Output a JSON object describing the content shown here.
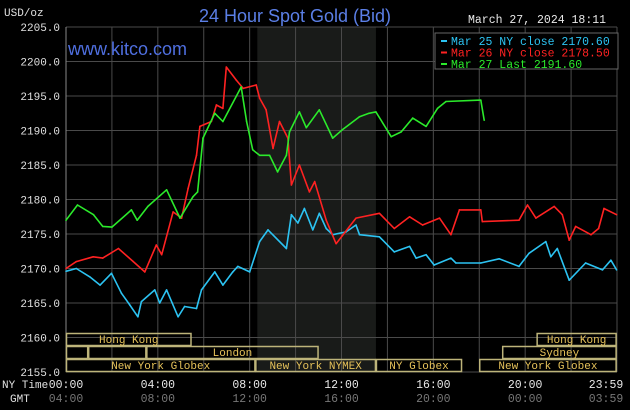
{
  "chart_data": {
    "type": "line",
    "title": "24 Hour Spot Gold (Bid)",
    "timestamp": "March 27, 2024 18:11",
    "watermark": "www.kitco.com",
    "ylabel": "USD/oz",
    "ylim": [
      2155,
      2205
    ],
    "yticks": [
      "2205.0",
      "2200.0",
      "2195.0",
      "2190.0",
      "2185.0",
      "2180.0",
      "2175.0",
      "2170.0",
      "2165.0",
      "2160.0",
      "2155.0"
    ],
    "xlim": [
      "00:00",
      "23:59"
    ],
    "xaxis_label_ny": "NY Time",
    "xaxis_label_gmt": "GMT",
    "xticks_ny": [
      "00:00",
      "04:00",
      "08:00",
      "12:00",
      "16:00",
      "20:00",
      "23:59"
    ],
    "xticks_gmt": [
      "04:00",
      "08:00",
      "12:00",
      "16:00",
      "20:00",
      "00:00",
      "03:59"
    ],
    "grid": true,
    "legend_position": "top-right",
    "shaded_window": [
      "08:20",
      "13:30"
    ],
    "colors": {
      "background": "#000000",
      "grid": "#4a4a4a",
      "title": "#5b7fe6",
      "session_text": "#e6c25a",
      "session_border": "#bdb47a",
      "shade": "#191b19",
      "gmt_text": "#777777"
    },
    "series": [
      {
        "name": "Mar 25 NY close 2170.60",
        "color": "#2cc3f2",
        "x": [
          "00:00",
          "00:27",
          "01:02",
          "01:29",
          "01:59",
          "02:25",
          "02:47",
          "03:08",
          "03:17",
          "03:52",
          "04:05",
          "04:23",
          "04:53",
          "05:10",
          "05:41",
          "05:54",
          "06:29",
          "06:50",
          "07:16",
          "07:29",
          "08:00",
          "08:26",
          "08:48",
          "09:36",
          "09:49",
          "10:06",
          "10:23",
          "10:45",
          "11:02",
          "11:20",
          "11:37",
          "12:12",
          "12:38",
          "12:47",
          "13:39",
          "14:18",
          "14:58",
          "15:15",
          "15:41",
          "16:02",
          "16:46",
          "16:59",
          "18:04",
          "18:52",
          "19:44",
          "20:10",
          "20:54",
          "21:07",
          "21:24",
          "21:55",
          "22:38",
          "23:22",
          "23:44",
          "23:59"
        ],
        "y": [
          2169.6,
          2170.0,
          2168.8,
          2167.6,
          2169.3,
          2166.4,
          2164.7,
          2163.0,
          2165.2,
          2166.9,
          2165.0,
          2166.9,
          2163.0,
          2164.5,
          2164.2,
          2166.9,
          2169.5,
          2167.6,
          2169.5,
          2170.3,
          2169.5,
          2173.9,
          2175.6,
          2172.9,
          2177.8,
          2176.6,
          2178.7,
          2175.6,
          2178.0,
          2175.8,
          2174.9,
          2175.3,
          2176.3,
          2174.9,
          2174.6,
          2172.4,
          2173.2,
          2171.5,
          2172.0,
          2170.5,
          2171.5,
          2170.8,
          2170.8,
          2171.4,
          2170.3,
          2172.2,
          2173.9,
          2171.7,
          2172.9,
          2168.3,
          2170.8,
          2169.8,
          2171.2,
          2169.8
        ]
      },
      {
        "name": "Mar 26 NY close 2178.50",
        "color": "#ff2222",
        "x": [
          "00:00",
          "00:27",
          "01:11",
          "01:36",
          "02:17",
          "02:56",
          "03:26",
          "03:56",
          "04:10",
          "04:40",
          "05:02",
          "05:19",
          "05:41",
          "05:50",
          "06:20",
          "06:33",
          "06:50",
          "06:59",
          "07:25",
          "07:43",
          "08:17",
          "08:26",
          "08:43",
          "09:01",
          "09:18",
          "09:40",
          "09:49",
          "10:10",
          "10:36",
          "10:50",
          "11:20",
          "11:46",
          "12:38",
          "13:39",
          "14:18",
          "14:58",
          "15:32",
          "16:16",
          "16:46",
          "17:08",
          "18:04",
          "18:08",
          "19:44",
          "20:06",
          "20:28",
          "21:16",
          "21:37",
          "21:55",
          "22:12",
          "22:52",
          "23:12",
          "23:26",
          "23:59"
        ],
        "y": [
          2170.0,
          2171.0,
          2171.7,
          2171.5,
          2172.9,
          2171.0,
          2169.5,
          2173.4,
          2172.0,
          2178.2,
          2177.3,
          2181.6,
          2186.4,
          2190.6,
          2191.3,
          2193.7,
          2193.2,
          2199.2,
          2197.3,
          2196.1,
          2196.6,
          2194.7,
          2193.0,
          2187.4,
          2191.3,
          2188.9,
          2182.1,
          2185.0,
          2181.1,
          2182.6,
          2177.0,
          2173.6,
          2177.3,
          2178.0,
          2175.8,
          2177.5,
          2176.3,
          2177.3,
          2174.9,
          2178.5,
          2178.5,
          2176.8,
          2177.0,
          2179.2,
          2177.3,
          2179.0,
          2177.8,
          2174.1,
          2176.1,
          2174.9,
          2175.8,
          2178.7,
          2177.8
        ]
      },
      {
        "name": "Mar 27 Last 2191.60",
        "color": "#2bea2b",
        "x": [
          "00:00",
          "00:30",
          "01:12",
          "01:36",
          "02:00",
          "02:51",
          "03:06",
          "03:34",
          "04:23",
          "04:58",
          "05:32",
          "05:44",
          "05:58",
          "06:29",
          "06:50",
          "07:38",
          "07:52",
          "08:08",
          "08:26",
          "08:52",
          "09:13",
          "09:36",
          "09:44",
          "10:10",
          "10:28",
          "11:02",
          "11:37",
          "12:02",
          "12:47",
          "13:12",
          "13:30",
          "14:10",
          "14:36",
          "15:06",
          "15:41",
          "16:11",
          "16:33",
          "18:04",
          "18:13"
        ],
        "y": [
          2177.0,
          2179.2,
          2177.8,
          2176.1,
          2176.0,
          2178.5,
          2177.0,
          2179.0,
          2181.4,
          2177.3,
          2180.4,
          2181.1,
          2188.9,
          2192.5,
          2191.3,
          2196.3,
          2191.3,
          2187.2,
          2186.4,
          2186.4,
          2184.0,
          2186.4,
          2189.8,
          2192.7,
          2190.4,
          2193.0,
          2188.9,
          2190.1,
          2192.0,
          2192.5,
          2192.7,
          2189.1,
          2189.8,
          2191.8,
          2190.6,
          2193.2,
          2194.2,
          2194.4,
          2191.5
        ]
      }
    ],
    "sessions": [
      {
        "label": "Hong Kong",
        "row": 0,
        "start": "00:00",
        "end": "05:28"
      },
      {
        "label": "Hong Kong",
        "row": 0,
        "start": "20:30",
        "end": "23:59"
      },
      {
        "label": "",
        "row": 1,
        "start": "00:00",
        "end": "00:58"
      },
      {
        "label": "",
        "row": 1,
        "start": "00:58",
        "end": "03:30"
      },
      {
        "label": "London",
        "row": 1,
        "start": "03:30",
        "end": "11:00"
      },
      {
        "label": "Sydney",
        "row": 1,
        "start": "19:00",
        "end": "23:59"
      },
      {
        "label": "New York Globex",
        "row": 2,
        "start": "00:00",
        "end": "08:15"
      },
      {
        "label": "New York NYMEX",
        "row": 2,
        "start": "08:15",
        "end": "13:30"
      },
      {
        "label": "NY Globex",
        "row": 2,
        "start": "13:30",
        "end": "17:15"
      },
      {
        "label": "New York Globex",
        "row": 2,
        "start": "18:00",
        "end": "23:59"
      }
    ]
  }
}
